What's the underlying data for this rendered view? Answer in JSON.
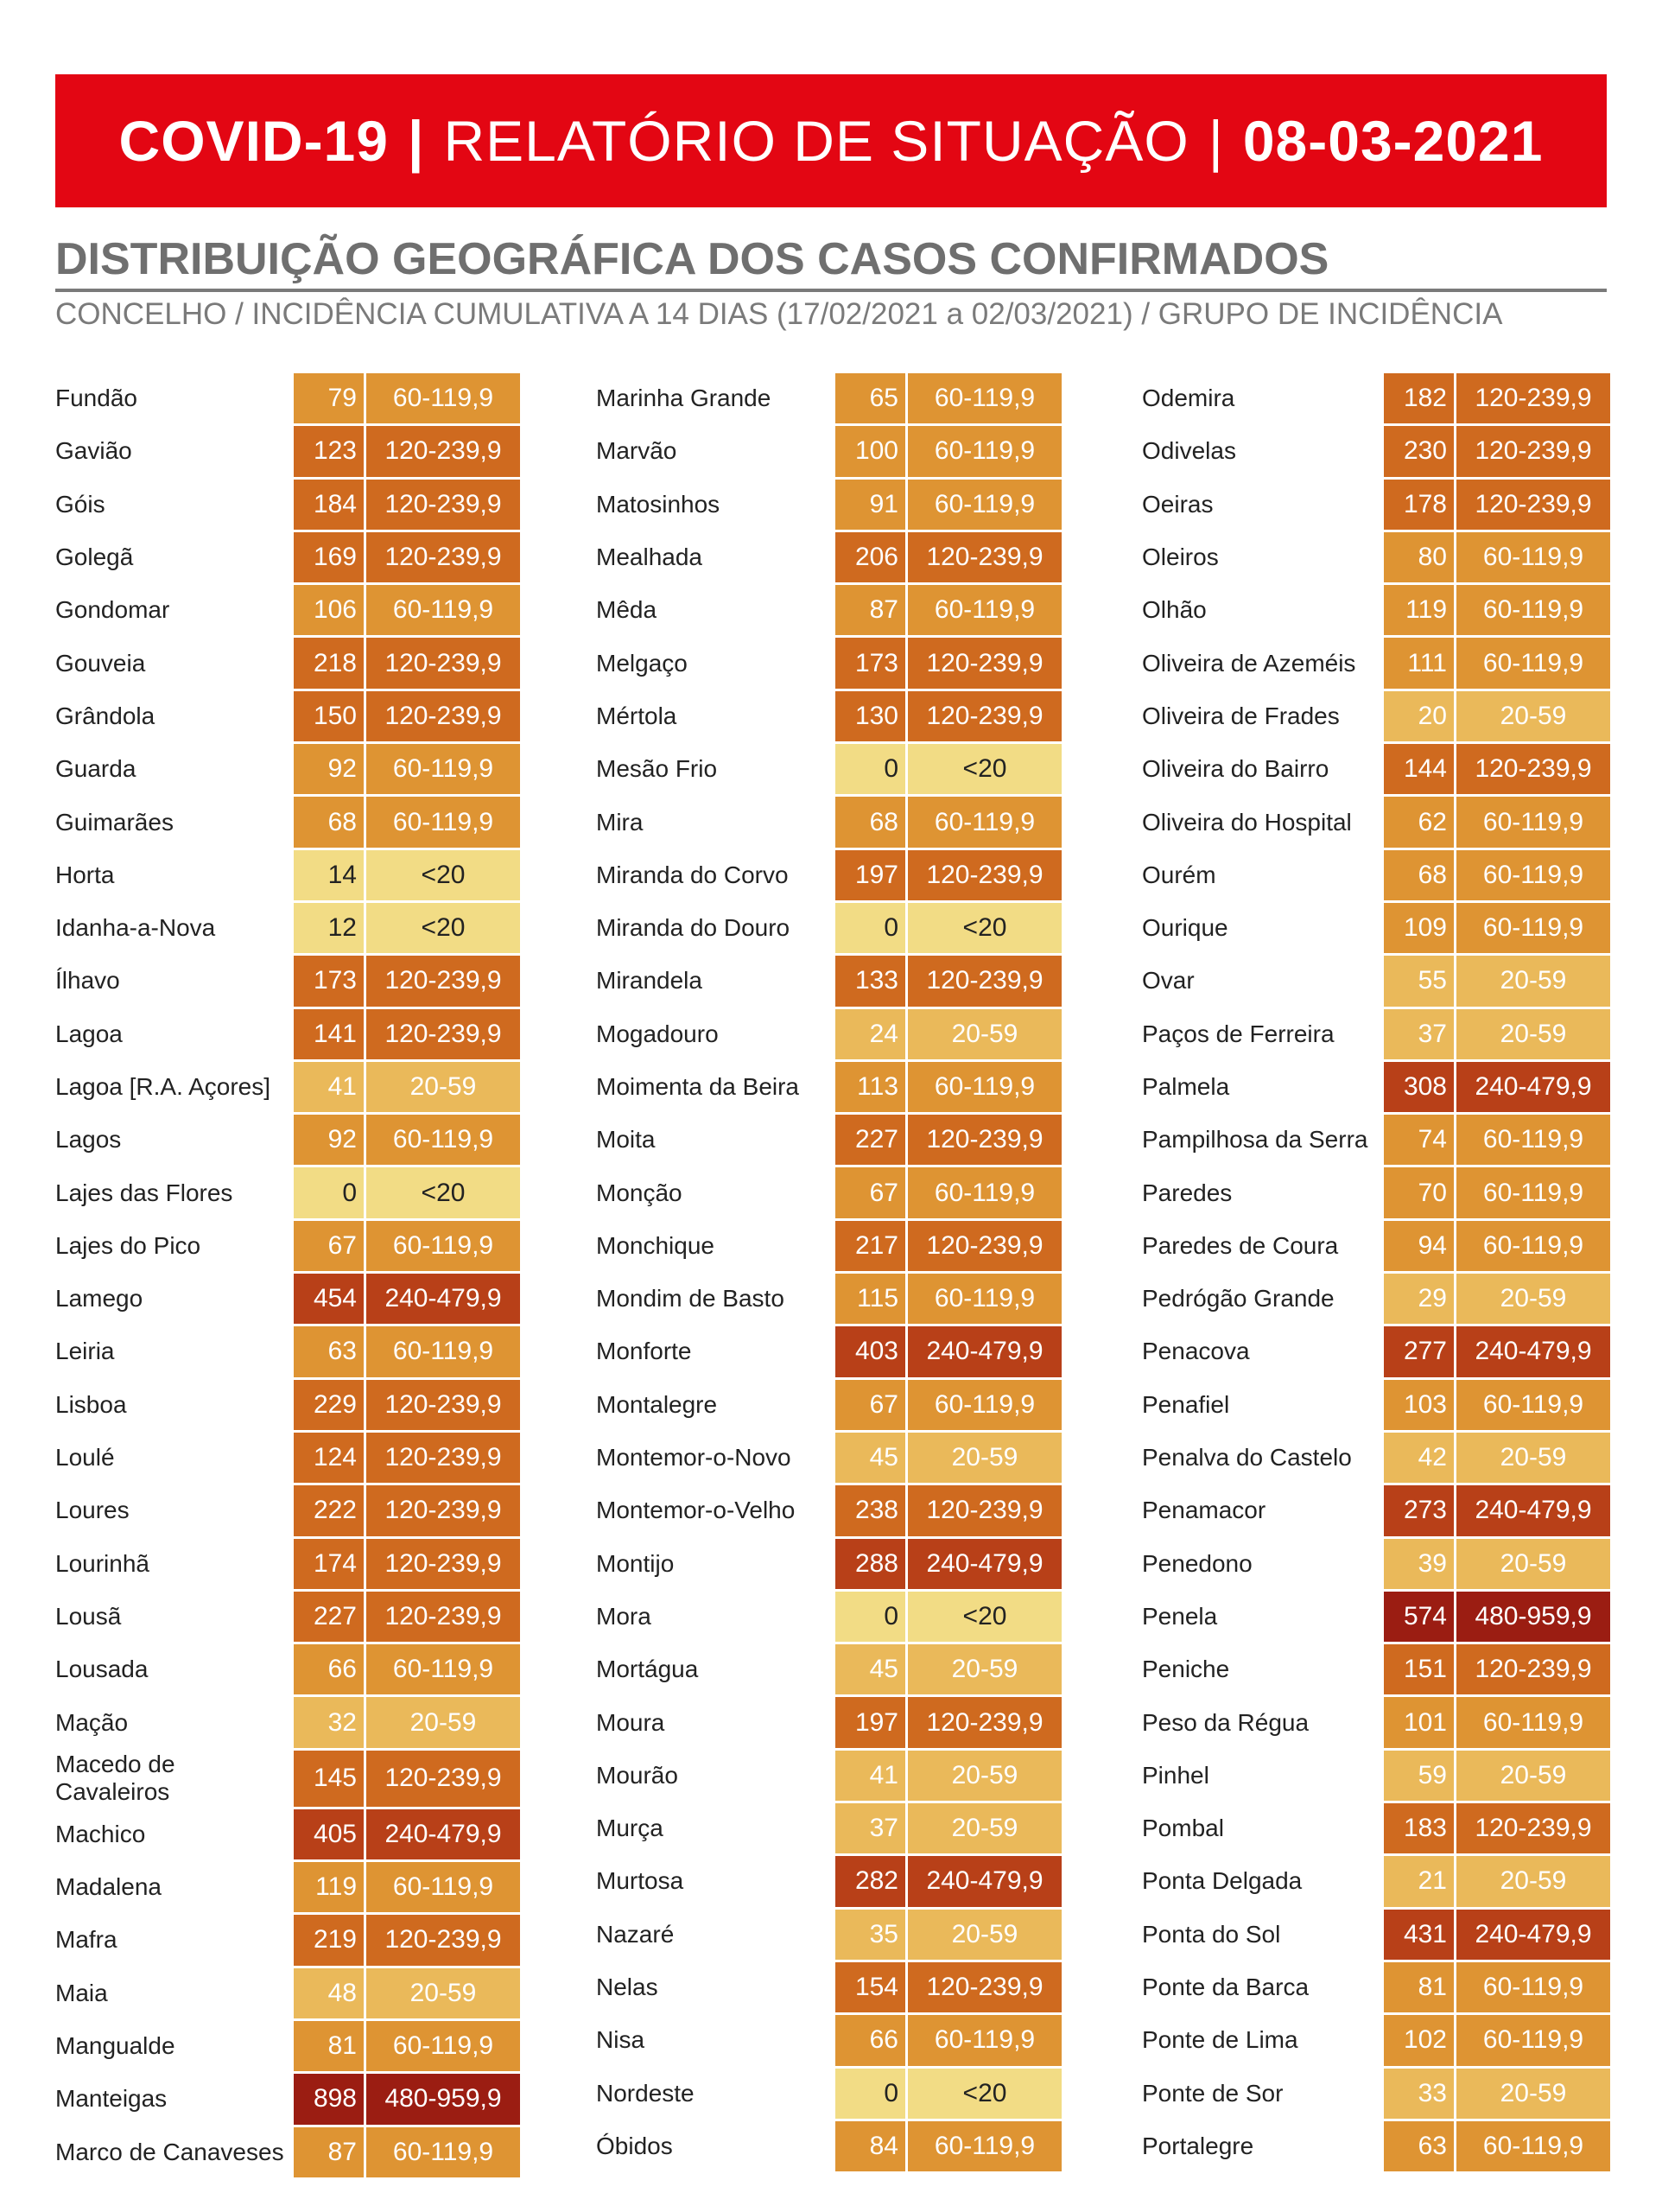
{
  "header": {
    "title_bold": "COVID-19",
    "separator": "|",
    "title_light": "RELATÓRIO DE SITUAÇÃO",
    "date": "08-03-2021"
  },
  "section": {
    "title": "DISTRIBUIÇÃO GEOGRÁFICA DOS CASOS CONFIRMADOS",
    "subtitle": "CONCELHO / INCIDÊNCIA CUMULATIVA A 14 DIAS (17/02/2021 a 02/03/2021) / GRUPO DE INCIDÊNCIA"
  },
  "group_colors": {
    "<20": "#f2dc85",
    "20-59": "#eab95a",
    "60-119,9": "#de9433",
    "120-239,9": "#cf6a1f",
    "240-479,9": "#b84018",
    "480-959,9": "#9b1d12"
  },
  "columns": [
    [
      {
        "name": "Fundão",
        "value": "79",
        "group": "60-119,9"
      },
      {
        "name": "Gavião",
        "value": "123",
        "group": "120-239,9"
      },
      {
        "name": "Góis",
        "value": "184",
        "group": "120-239,9"
      },
      {
        "name": "Golegã",
        "value": "169",
        "group": "120-239,9"
      },
      {
        "name": "Gondomar",
        "value": "106",
        "group": "60-119,9"
      },
      {
        "name": "Gouveia",
        "value": "218",
        "group": "120-239,9"
      },
      {
        "name": "Grândola",
        "value": "150",
        "group": "120-239,9"
      },
      {
        "name": "Guarda",
        "value": "92",
        "group": "60-119,9"
      },
      {
        "name": "Guimarães",
        "value": "68",
        "group": "60-119,9"
      },
      {
        "name": "Horta",
        "value": "14",
        "group": "<20"
      },
      {
        "name": "Idanha-a-Nova",
        "value": "12",
        "group": "<20"
      },
      {
        "name": "Ílhavo",
        "value": "173",
        "group": "120-239,9"
      },
      {
        "name": "Lagoa",
        "value": "141",
        "group": "120-239,9"
      },
      {
        "name": "Lagoa [R.A. Açores]",
        "value": "41",
        "group": "20-59"
      },
      {
        "name": "Lagos",
        "value": "92",
        "group": "60-119,9"
      },
      {
        "name": "Lajes das Flores",
        "value": "0",
        "group": "<20"
      },
      {
        "name": "Lajes do Pico",
        "value": "67",
        "group": "60-119,9"
      },
      {
        "name": "Lamego",
        "value": "454",
        "group": "240-479,9"
      },
      {
        "name": "Leiria",
        "value": "63",
        "group": "60-119,9"
      },
      {
        "name": "Lisboa",
        "value": "229",
        "group": "120-239,9"
      },
      {
        "name": "Loulé",
        "value": "124",
        "group": "120-239,9"
      },
      {
        "name": "Loures",
        "value": "222",
        "group": "120-239,9"
      },
      {
        "name": "Lourinhã",
        "value": "174",
        "group": "120-239,9"
      },
      {
        "name": "Lousã",
        "value": "227",
        "group": "120-239,9"
      },
      {
        "name": "Lousada",
        "value": "66",
        "group": "60-119,9"
      },
      {
        "name": "Mação",
        "value": "32",
        "group": "20-59"
      },
      {
        "name": "Macedo de Cavaleiros",
        "value": "145",
        "group": "120-239,9",
        "tall": true
      },
      {
        "name": "Machico",
        "value": "405",
        "group": "240-479,9"
      },
      {
        "name": "Madalena",
        "value": "119",
        "group": "60-119,9"
      },
      {
        "name": "Mafra",
        "value": "219",
        "group": "120-239,9"
      },
      {
        "name": "Maia",
        "value": "48",
        "group": "20-59"
      },
      {
        "name": "Mangualde",
        "value": "81",
        "group": "60-119,9"
      },
      {
        "name": "Manteigas",
        "value": "898",
        "group": "480-959,9"
      },
      {
        "name": "Marco de Canaveses",
        "value": "87",
        "group": "60-119,9"
      }
    ],
    [
      {
        "name": "Marinha Grande",
        "value": "65",
        "group": "60-119,9"
      },
      {
        "name": "Marvão",
        "value": "100",
        "group": "60-119,9"
      },
      {
        "name": "Matosinhos",
        "value": "91",
        "group": "60-119,9"
      },
      {
        "name": "Mealhada",
        "value": "206",
        "group": "120-239,9"
      },
      {
        "name": "Mêda",
        "value": "87",
        "group": "60-119,9"
      },
      {
        "name": "Melgaço",
        "value": "173",
        "group": "120-239,9"
      },
      {
        "name": "Mértola",
        "value": "130",
        "group": "120-239,9"
      },
      {
        "name": "Mesão Frio",
        "value": "0",
        "group": "<20"
      },
      {
        "name": "Mira",
        "value": "68",
        "group": "60-119,9"
      },
      {
        "name": "Miranda do Corvo",
        "value": "197",
        "group": "120-239,9"
      },
      {
        "name": "Miranda do Douro",
        "value": "0",
        "group": "<20"
      },
      {
        "name": "Mirandela",
        "value": "133",
        "group": "120-239,9"
      },
      {
        "name": "Mogadouro",
        "value": "24",
        "group": "20-59"
      },
      {
        "name": "Moimenta da Beira",
        "value": "113",
        "group": "60-119,9"
      },
      {
        "name": "Moita",
        "value": "227",
        "group": "120-239,9"
      },
      {
        "name": "Monção",
        "value": "67",
        "group": "60-119,9"
      },
      {
        "name": "Monchique",
        "value": "217",
        "group": "120-239,9"
      },
      {
        "name": "Mondim de Basto",
        "value": "115",
        "group": "60-119,9"
      },
      {
        "name": "Monforte",
        "value": "403",
        "group": "240-479,9"
      },
      {
        "name": "Montalegre",
        "value": "67",
        "group": "60-119,9"
      },
      {
        "name": "Montemor-o-Novo",
        "value": "45",
        "group": "20-59"
      },
      {
        "name": "Montemor-o-Velho",
        "value": "238",
        "group": "120-239,9"
      },
      {
        "name": "Montijo",
        "value": "288",
        "group": "240-479,9"
      },
      {
        "name": "Mora",
        "value": "0",
        "group": "<20"
      },
      {
        "name": "Mortágua",
        "value": "45",
        "group": "20-59"
      },
      {
        "name": "Moura",
        "value": "197",
        "group": "120-239,9"
      },
      {
        "name": "Mourão",
        "value": "41",
        "group": "20-59"
      },
      {
        "name": "Murça",
        "value": "37",
        "group": "20-59"
      },
      {
        "name": "Murtosa",
        "value": "282",
        "group": "240-479,9"
      },
      {
        "name": "Nazaré",
        "value": "35",
        "group": "20-59"
      },
      {
        "name": "Nelas",
        "value": "154",
        "group": "120-239,9"
      },
      {
        "name": "Nisa",
        "value": "66",
        "group": "60-119,9"
      },
      {
        "name": "Nordeste",
        "value": "0",
        "group": "<20"
      },
      {
        "name": "Óbidos",
        "value": "84",
        "group": "60-119,9"
      }
    ],
    [
      {
        "name": "Odemira",
        "value": "182",
        "group": "120-239,9"
      },
      {
        "name": "Odivelas",
        "value": "230",
        "group": "120-239,9"
      },
      {
        "name": "Oeiras",
        "value": "178",
        "group": "120-239,9"
      },
      {
        "name": "Oleiros",
        "value": "80",
        "group": "60-119,9"
      },
      {
        "name": "Olhão",
        "value": "119",
        "group": "60-119,9"
      },
      {
        "name": "Oliveira de Azeméis",
        "value": "111",
        "group": "60-119,9"
      },
      {
        "name": "Oliveira de Frades",
        "value": "20",
        "group": "20-59"
      },
      {
        "name": "Oliveira do Bairro",
        "value": "144",
        "group": "120-239,9"
      },
      {
        "name": "Oliveira do Hospital",
        "value": "62",
        "group": "60-119,9"
      },
      {
        "name": "Ourém",
        "value": "68",
        "group": "60-119,9"
      },
      {
        "name": "Ourique",
        "value": "109",
        "group": "60-119,9"
      },
      {
        "name": "Ovar",
        "value": "55",
        "group": "20-59"
      },
      {
        "name": "Paços de Ferreira",
        "value": "37",
        "group": "20-59"
      },
      {
        "name": "Palmela",
        "value": "308",
        "group": "240-479,9"
      },
      {
        "name": "Pampilhosa da Serra",
        "value": "74",
        "group": "60-119,9"
      },
      {
        "name": "Paredes",
        "value": "70",
        "group": "60-119,9"
      },
      {
        "name": "Paredes de Coura",
        "value": "94",
        "group": "60-119,9"
      },
      {
        "name": "Pedrógão Grande",
        "value": "29",
        "group": "20-59"
      },
      {
        "name": "Penacova",
        "value": "277",
        "group": "240-479,9"
      },
      {
        "name": "Penafiel",
        "value": "103",
        "group": "60-119,9"
      },
      {
        "name": "Penalva do Castelo",
        "value": "42",
        "group": "20-59"
      },
      {
        "name": "Penamacor",
        "value": "273",
        "group": "240-479,9"
      },
      {
        "name": "Penedono",
        "value": "39",
        "group": "20-59"
      },
      {
        "name": "Penela",
        "value": "574",
        "group": "480-959,9"
      },
      {
        "name": "Peniche",
        "value": "151",
        "group": "120-239,9"
      },
      {
        "name": "Peso da Régua",
        "value": "101",
        "group": "60-119,9"
      },
      {
        "name": "Pinhel",
        "value": "59",
        "group": "20-59"
      },
      {
        "name": "Pombal",
        "value": "183",
        "group": "120-239,9"
      },
      {
        "name": "Ponta Delgada",
        "value": "21",
        "group": "20-59"
      },
      {
        "name": "Ponta do Sol",
        "value": "431",
        "group": "240-479,9"
      },
      {
        "name": "Ponte da Barca",
        "value": "81",
        "group": "60-119,9"
      },
      {
        "name": "Ponte de Lima",
        "value": "102",
        "group": "60-119,9"
      },
      {
        "name": "Ponte de Sor",
        "value": "33",
        "group": "20-59"
      },
      {
        "name": "Portalegre",
        "value": "63",
        "group": "60-119,9"
      }
    ]
  ]
}
